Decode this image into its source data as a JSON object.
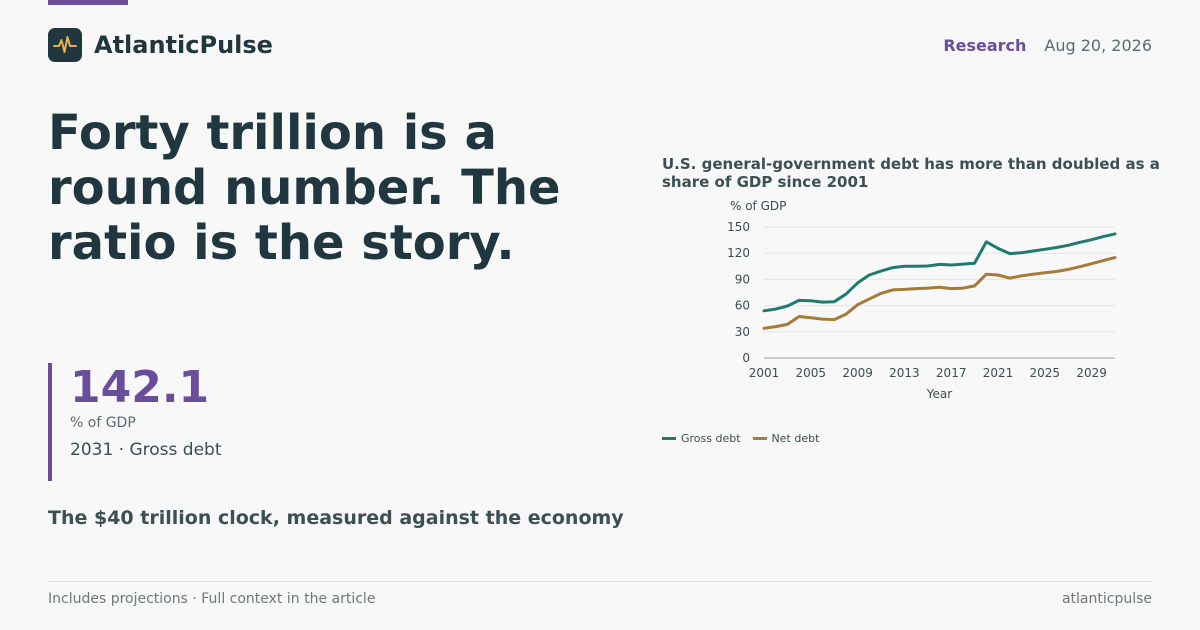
{
  "brand": {
    "name": "AtlanticPulse",
    "icon": "pulse-icon"
  },
  "header": {
    "section": "Research",
    "date": "Aug 20, 2026"
  },
  "headline": "Forty trillion is a round number. The ratio is the story.",
  "stat": {
    "value": "142.1",
    "unit": "% of GDP",
    "caption": "2031 · Gross debt"
  },
  "subhead": "The $40 trillion clock, measured against the economy",
  "footer": {
    "note": "Includes projections · Full context in the article",
    "source": "atlanticpulse"
  },
  "colors": {
    "accent": "#6b4e9b",
    "gross": "#217a72",
    "net": "#a67a38",
    "text": "#22363d"
  },
  "chart_data": {
    "type": "line",
    "title": "U.S. general-government debt has more than doubled as a share of GDP since 2001",
    "xlabel": "Year",
    "ylabel": "% of GDP",
    "ylim": [
      0,
      150
    ],
    "xlim": [
      2001,
      2031
    ],
    "yticks": [
      0,
      30,
      60,
      90,
      120,
      150
    ],
    "xticks": [
      2001,
      2005,
      2009,
      2013,
      2017,
      2021,
      2025,
      2029
    ],
    "grid": true,
    "legend": "bottom-left",
    "x": [
      2001,
      2002,
      2003,
      2004,
      2005,
      2006,
      2007,
      2008,
      2009,
      2010,
      2011,
      2012,
      2013,
      2014,
      2015,
      2016,
      2017,
      2018,
      2019,
      2020,
      2021,
      2022,
      2023,
      2024,
      2025,
      2026,
      2027,
      2028,
      2029,
      2030,
      2031
    ],
    "series": [
      {
        "name": "Gross debt",
        "color": "#217a72",
        "values": [
          54.0,
          56.0,
          59.5,
          65.9,
          65.5,
          64.0,
          64.5,
          73.0,
          86.0,
          95.0,
          99.5,
          103.5,
          105.0,
          105.0,
          105.3,
          107.2,
          106.5,
          107.5,
          108.5,
          133.0,
          125.5,
          119.5,
          120.5,
          122.5,
          124.5,
          126.5,
          129.0,
          132.5,
          135.5,
          139.0,
          142.1
        ]
      },
      {
        "name": "Net debt",
        "color": "#a67a38",
        "values": [
          34.0,
          36.0,
          38.5,
          47.5,
          46.0,
          44.5,
          44.0,
          50.0,
          61.0,
          67.5,
          74.0,
          78.0,
          78.5,
          79.5,
          80.0,
          81.0,
          79.5,
          80.0,
          82.5,
          96.0,
          95.0,
          91.5,
          94.0,
          96.0,
          97.5,
          99.0,
          101.5,
          104.5,
          108.0,
          111.5,
          115.0
        ]
      }
    ]
  }
}
